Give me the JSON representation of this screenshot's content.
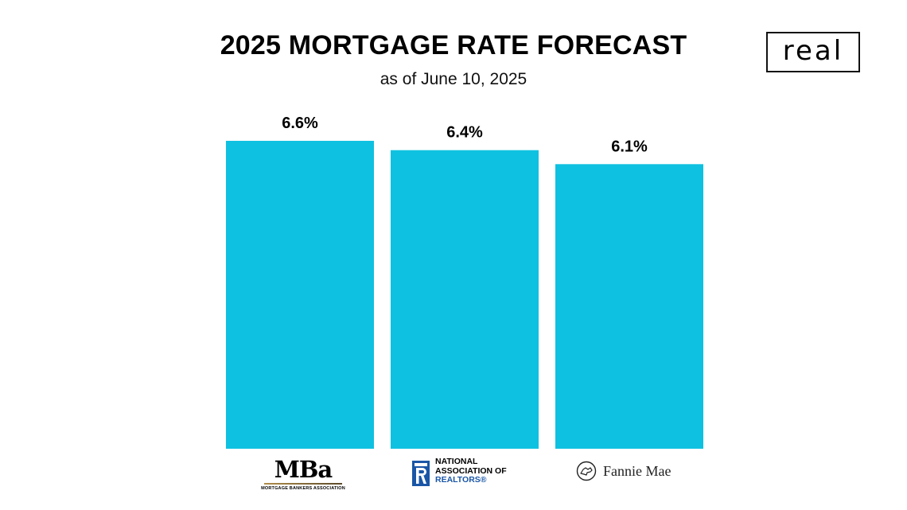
{
  "header": {
    "title": "2025 MORTGAGE RATE FORECAST",
    "subtitle": "as of June 10, 2025",
    "brand": "real"
  },
  "colors": {
    "bar": "#0fc1e0",
    "text": "#000000",
    "nar_blue": "#1a56a6"
  },
  "logos": {
    "mba": {
      "mark": "MBa",
      "full_name": "MORTGAGE BANKERS ASSOCIATION"
    },
    "nar": {
      "line1": "NATIONAL",
      "line2": "ASSOCIATION OF",
      "line3": "REALTORS®"
    },
    "fannie": {
      "name": "Fannie Mae",
      "icon": "fannie-mae-house-icon"
    }
  },
  "chart_data": {
    "type": "bar",
    "categories": [
      "Mortgage Bankers Association",
      "National Association of Realtors",
      "Fannie Mae"
    ],
    "values": [
      6.6,
      6.4,
      6.1
    ],
    "data_labels": [
      "6.6%",
      "6.4%",
      "6.1%"
    ],
    "title": "2025 MORTGAGE RATE FORECAST",
    "subtitle": "as of June 10, 2025",
    "ylim": [
      0,
      6.6
    ],
    "grid": false,
    "legend": "none",
    "axis_visible": false
  }
}
